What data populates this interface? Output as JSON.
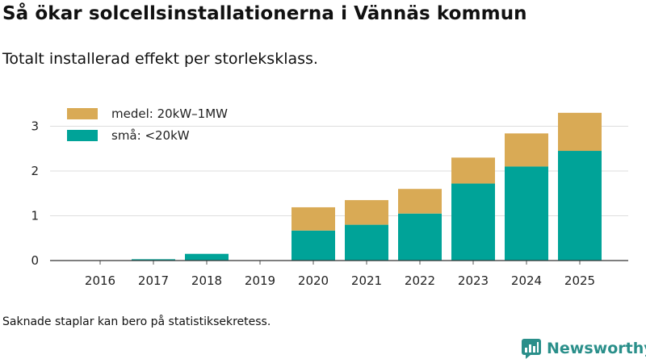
{
  "title": "Så ökar solcellsinstallationerna i Vännäs kommun",
  "subtitle": "Totalt installerad effekt per storleksklass.",
  "footnote": "Saknade staplar kan bero på statistiksekretess.",
  "brand": "Newsworthy",
  "chart_data": {
    "type": "bar",
    "stacked": true,
    "categories": [
      "2016",
      "2017",
      "2018",
      "2019",
      "2020",
      "2021",
      "2022",
      "2023",
      "2024",
      "2025"
    ],
    "series": [
      {
        "name": "små: <20kW",
        "color": "#00a398",
        "values": [
          0,
          0.03,
          0.15,
          0,
          0.67,
          0.8,
          1.05,
          1.72,
          2.1,
          2.45
        ]
      },
      {
        "name": "medel: 20kW–1MW",
        "color": "#d9aa55",
        "values": [
          0,
          0,
          0,
          0,
          0.52,
          0.55,
          0.55,
          0.58,
          0.74,
          0.85
        ]
      }
    ],
    "yticks": [
      0,
      1,
      2,
      3
    ],
    "ylim": [
      0,
      3.3
    ],
    "legend_position": "top-left",
    "grid": true
  }
}
